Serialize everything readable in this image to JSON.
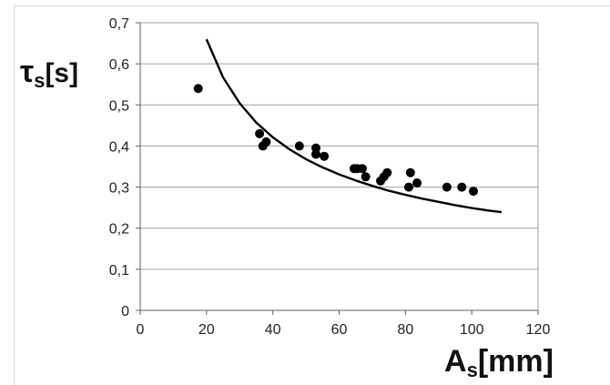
{
  "chart_data": {
    "type": "scatter",
    "title": "",
    "xlabel_main": "A",
    "xlabel_sub": "s",
    "xlabel_unit": "[mm]",
    "ylabel_main": "τ",
    "ylabel_sub": "s",
    "ylabel_unit": "[s]",
    "xlim": [
      0,
      120
    ],
    "ylim": [
      0,
      0.7
    ],
    "x_ticks": [
      "0",
      "20",
      "40",
      "60",
      "80",
      "100",
      "120"
    ],
    "y_ticks": [
      "0",
      "0,1",
      "0,2",
      "0,3",
      "0,4",
      "0,5",
      "0,6",
      "0,7"
    ],
    "grid": "horizontal",
    "legend": "none",
    "series": [
      {
        "kind": "points",
        "x": [
          17.5,
          36,
          37,
          38,
          48,
          53,
          53,
          55.5,
          64.5,
          65.5,
          67,
          68,
          72.5,
          73.5,
          74.5,
          81,
          81.5,
          83.5,
          92.5,
          97,
          100.5
        ],
        "y": [
          0.54,
          0.43,
          0.4,
          0.41,
          0.4,
          0.395,
          0.38,
          0.375,
          0.345,
          0.345,
          0.345,
          0.325,
          0.315,
          0.325,
          0.335,
          0.3,
          0.335,
          0.31,
          0.3,
          0.3,
          0.29
        ]
      },
      {
        "kind": "fit-curve",
        "x": [
          20,
          25,
          30,
          35,
          40,
          45,
          50,
          55,
          60,
          65,
          70,
          75,
          80,
          85,
          90,
          95,
          100,
          105,
          109
        ],
        "y": [
          0.66,
          0.567,
          0.504,
          0.457,
          0.421,
          0.392,
          0.368,
          0.348,
          0.331,
          0.316,
          0.303,
          0.291,
          0.281,
          0.272,
          0.264,
          0.256,
          0.249,
          0.243,
          0.239
        ]
      }
    ],
    "colors": {
      "marks": "#000000",
      "grid": "#a0a0a0",
      "axis": "#606060"
    }
  }
}
